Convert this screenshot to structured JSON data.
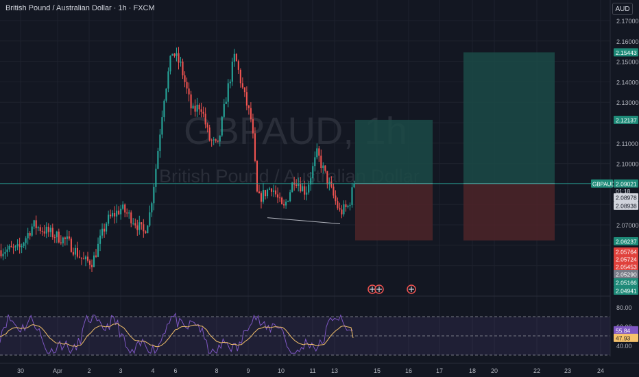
{
  "header": {
    "title": "British Pound / Australian Dollar · 1h · FXCM",
    "currency_button": "AUD"
  },
  "watermark": {
    "symbol": "GBPAUD, 1h",
    "name": "British Pound / Australian Dollar"
  },
  "price_axis": {
    "ticks": [
      "2.17000",
      "2.16000",
      "2.15000",
      "2.14000",
      "2.13000",
      "2.11000",
      "2.10000",
      "2.07000"
    ]
  },
  "price_labels": {
    "target_long": "2.15443",
    "target_short": "2.12137",
    "symbol_tag": "GBPAUD",
    "last_price": "2.09021",
    "countdown": "01:18",
    "bid": "2.08978",
    "ask": "2.08938",
    "l1": "2.06237",
    "l2": "2.05764",
    "l3": "2.05724",
    "l4": "2.05453",
    "l5": "2.05290",
    "l6": "2.05166",
    "l7": "2.04941"
  },
  "rsi_panel": {
    "ticks": [
      "80.00",
      "60.00",
      "40.00"
    ],
    "rsi_value": "55.84",
    "ma_value": "47.93"
  },
  "time_axis": {
    "labels": [
      "30",
      "Apr",
      "2",
      "3",
      "4",
      "6",
      "8",
      "9",
      "10",
      "11",
      "13",
      "15",
      "16",
      "17",
      "18",
      "20",
      "22",
      "23",
      "24"
    ]
  },
  "colors": {
    "background": "#131722",
    "up": "#26a69a",
    "down": "#ef5350",
    "rsi": "#7e57c2",
    "rsi_ma": "#f5c26b",
    "profit_zone": "#1b4a47",
    "loss_zone": "#4a2428"
  },
  "chart_data": {
    "type": "candlestick",
    "title": "British Pound / Australian Dollar · 1h · FXCM",
    "xlabel": "",
    "ylabel": "",
    "ylim": [
      2.045,
      2.173
    ],
    "last_price": 2.09021,
    "x_ticks": [
      "30",
      "Apr",
      "2",
      "3",
      "4",
      "6",
      "8",
      "9",
      "10",
      "11",
      "13",
      "15",
      "16",
      "17",
      "18",
      "20",
      "22",
      "23",
      "24"
    ],
    "y_ticks": [
      2.17,
      2.16,
      2.15,
      2.14,
      2.13,
      2.11,
      2.1,
      2.07
    ],
    "close_path": [
      [
        0,
        2.0575
      ],
      [
        0.035,
        2.058
      ],
      [
        0.06,
        2.07
      ],
      [
        0.09,
        2.066
      ],
      [
        0.12,
        2.062
      ],
      [
        0.15,
        2.052
      ],
      [
        0.165,
        2.052
      ],
      [
        0.19,
        2.072
      ],
      [
        0.215,
        2.078
      ],
      [
        0.235,
        2.073
      ],
      [
        0.255,
        2.066
      ],
      [
        0.265,
        2.075
      ],
      [
        0.275,
        2.095
      ],
      [
        0.29,
        2.132
      ],
      [
        0.305,
        2.155
      ],
      [
        0.32,
        2.148
      ],
      [
        0.34,
        2.125
      ],
      [
        0.355,
        2.129
      ],
      [
        0.37,
        2.112
      ],
      [
        0.385,
        2.108
      ],
      [
        0.4,
        2.133
      ],
      [
        0.415,
        2.153
      ],
      [
        0.43,
        2.135
      ],
      [
        0.445,
        2.12
      ],
      [
        0.455,
        2.082
      ],
      [
        0.48,
        2.089
      ],
      [
        0.5,
        2.077
      ],
      [
        0.52,
        2.093
      ],
      [
        0.54,
        2.086
      ],
      [
        0.56,
        2.105
      ],
      [
        0.58,
        2.09
      ],
      [
        0.6,
        2.076
      ],
      [
        0.615,
        2.079
      ],
      [
        0.625,
        2.0902
      ]
    ],
    "position_long": {
      "entry": 2.0902,
      "target": 2.15443,
      "stop": 2.06237
    },
    "position_short_box": {
      "entry": 2.0902,
      "target": 2.12137,
      "stop": 2.0624
    },
    "trendline": [
      [
        2.0735,
        "start"
      ],
      [
        2.0705,
        "end"
      ]
    ],
    "rsi": {
      "overbought": 70,
      "mid": 50,
      "oversold": 30,
      "ylim": [
        30,
        82
      ],
      "last_rsi": 55.84,
      "last_ma": 47.93
    }
  }
}
